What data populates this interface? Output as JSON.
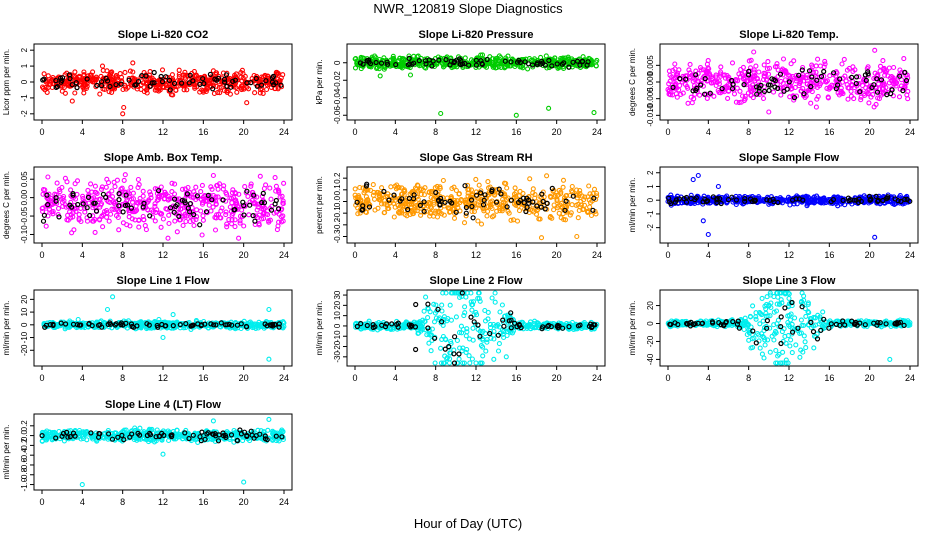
{
  "figure": {
    "title": "NWR_120819  Slope Diagnostics",
    "xlabel": "Hour of Day (UTC)"
  },
  "chart_data": [
    {
      "type": "scatter",
      "title": "Slope Li-820 CO2",
      "ylabel": "Licor ppm per min.",
      "color": "#ff0000",
      "xlim": [
        0,
        24
      ],
      "xticks": [
        0,
        4,
        8,
        12,
        16,
        20,
        24
      ],
      "ylim": [
        -2.2,
        2.2
      ],
      "yticks": [
        "-2",
        "-1",
        "0",
        "1",
        "2"
      ],
      "ytick_values": [
        -2,
        -1,
        0,
        1,
        2
      ],
      "spread": 0.55,
      "outliers": [
        [
          8,
          -2.0
        ],
        [
          8.1,
          -1.6
        ],
        [
          3,
          -1.2
        ],
        [
          20.3,
          -1.3
        ],
        [
          6,
          1.0
        ],
        [
          9,
          1.2
        ]
      ],
      "black_spread": 0.4
    },
    {
      "type": "scatter",
      "title": "Slope Li-820 Pressure",
      "ylabel": "kPa per min.",
      "color": "#00cc00",
      "xlim": [
        0,
        24
      ],
      "xticks": [
        0,
        4,
        8,
        12,
        16,
        20,
        24
      ],
      "ylim": [
        -0.062,
        0.018
      ],
      "yticks": [
        "-0.06",
        "-0.04",
        "-0.02",
        "0"
      ],
      "ytick_values": [
        -0.06,
        -0.04,
        -0.02,
        0
      ],
      "spread": 0.006,
      "center": 0.0,
      "outliers": [
        [
          8.5,
          -0.058
        ],
        [
          16,
          -0.06
        ],
        [
          19.2,
          -0.052
        ],
        [
          23.7,
          -0.057
        ],
        [
          2.5,
          -0.015
        ],
        [
          5.5,
          -0.014
        ]
      ],
      "black_spread": 0.004
    },
    {
      "type": "scatter",
      "title": "Slope Li-820 Temp.",
      "ylabel": "degrees C per min.",
      "color": "#ff00ff",
      "xlim": [
        0,
        24
      ],
      "xticks": [
        0,
        4,
        8,
        12,
        16,
        20,
        24
      ],
      "ylim": [
        -0.0105,
        0.0105
      ],
      "yticks": [
        "-0.010",
        "-0.005",
        "0.000",
        "0.005"
      ],
      "ytick_values": [
        -0.01,
        -0.005,
        0,
        0.005
      ],
      "spread": 0.005,
      "outliers": [
        [
          10,
          -0.009
        ],
        [
          8.5,
          0.009
        ],
        [
          20.5,
          0.0095
        ]
      ],
      "black_spread": 0.004
    },
    {
      "type": "scatter",
      "title": "Slope Amb. Box Temp.",
      "ylabel": "degrees C per min.",
      "color": "#ff00ff",
      "xlim": [
        0,
        24
      ],
      "xticks": [
        0,
        4,
        8,
        12,
        16,
        20,
        24
      ],
      "ylim": [
        -0.115,
        0.075
      ],
      "yticks": [
        "-0.10",
        "-0.05",
        "0.00",
        "0.05"
      ],
      "ytick_values": [
        -0.1,
        -0.05,
        0,
        0.05
      ],
      "spread": 0.055,
      "center": -0.02,
      "outliers": [
        [
          17,
          0.06
        ],
        [
          12.5,
          -0.11
        ],
        [
          19.5,
          -0.11
        ]
      ],
      "black_spread": 0.04
    },
    {
      "type": "scatter",
      "title": "Slope Gas Stream RH",
      "ylabel": "percent per min.",
      "color": "#ff9900",
      "xlim": [
        0,
        24
      ],
      "xticks": [
        0,
        4,
        8,
        12,
        16,
        20,
        24
      ],
      "ylim": [
        -0.33,
        0.27
      ],
      "yticks": [
        "-0.3",
        "-0.2",
        "-0.1",
        "0.0",
        "0.1",
        "0.2"
      ],
      "ytick_values": [
        -0.3,
        -0.2,
        -0.1,
        0,
        0.1,
        0.2
      ],
      "spread": 0.13,
      "outliers": [
        [
          18.5,
          -0.31
        ],
        [
          22,
          -0.3
        ],
        [
          19,
          0.22
        ]
      ],
      "black_spread": 0.1
    },
    {
      "type": "scatter",
      "title": "Slope Sample Flow",
      "ylabel": "ml/min per min.",
      "color": "#0000ff",
      "xlim": [
        0,
        24
      ],
      "xticks": [
        0,
        4,
        8,
        12,
        16,
        20,
        24
      ],
      "ylim": [
        -2.9,
        2.2
      ],
      "yticks": [
        "-2",
        "-1",
        "0",
        "1",
        "2"
      ],
      "ytick_values": [
        -2,
        -1,
        0,
        1,
        2
      ],
      "spread": 0.25,
      "outliers": [
        [
          3,
          1.8
        ],
        [
          4,
          -2.5
        ],
        [
          20.5,
          -2.7
        ],
        [
          2.5,
          1.5
        ],
        [
          3.5,
          -1.5
        ],
        [
          5,
          1.0
        ]
      ],
      "black_spread": 0.2
    },
    {
      "type": "scatter",
      "title": "Slope Line 1 Flow",
      "ylabel": "ml/min per min.",
      "color": "#00eeee",
      "xlim": [
        0,
        24
      ],
      "xticks": [
        0,
        4,
        8,
        12,
        16,
        20,
        24
      ],
      "ylim": [
        -30,
        25
      ],
      "yticks": [
        "-20",
        "-10",
        "0",
        "10",
        "20"
      ],
      "ytick_values": [
        -20,
        -10,
        0,
        10,
        20
      ],
      "spread": 2.5,
      "outliers": [
        [
          7,
          22
        ],
        [
          22.5,
          -27
        ],
        [
          6.5,
          12
        ],
        [
          12,
          -10
        ],
        [
          13,
          8
        ],
        [
          22.5,
          12
        ]
      ],
      "black_spread": 1.5
    },
    {
      "type": "scatter",
      "title": "Slope Line 2 Flow",
      "ylabel": "ml/min per min.",
      "color": "#00eeee",
      "xlim": [
        0,
        24
      ],
      "xticks": [
        0,
        4,
        8,
        12,
        16,
        20,
        24
      ],
      "ylim": [
        -36,
        32
      ],
      "yticks": [
        "-30",
        "-20",
        "-10",
        "0",
        "10",
        "20",
        "30"
      ],
      "ytick_values": [
        -30,
        -20,
        -10,
        0,
        10,
        20,
        30
      ],
      "spread": 3,
      "burst": [
        6,
        16,
        22
      ],
      "outliers": [
        [
          15,
          -30
        ],
        [
          11,
          28
        ],
        [
          7,
          28
        ]
      ],
      "black_spread": 2
    },
    {
      "type": "scatter",
      "title": "Slope Line 3 Flow",
      "ylabel": "ml/min per min.",
      "color": "#00eeee",
      "xlim": [
        0,
        24
      ],
      "xticks": [
        0,
        4,
        8,
        12,
        16,
        20,
        24
      ],
      "ylim": [
        -44,
        34
      ],
      "yticks": [
        "-40",
        "-20",
        "0",
        "20"
      ],
      "ytick_values": [
        -40,
        -20,
        0,
        20
      ],
      "spread": 3,
      "burst": [
        7,
        16,
        18
      ],
      "outliers": [
        [
          10.5,
          30
        ],
        [
          22,
          -40
        ],
        [
          12,
          28
        ]
      ],
      "black_spread": 2
    },
    {
      "type": "scatter",
      "title": "Slope Line 4 (LT) Flow",
      "ylabel": "ml/min per min.",
      "color": "#00eeee",
      "xlim": [
        0,
        24
      ],
      "xticks": [
        0,
        4,
        8,
        12,
        16,
        20,
        24
      ],
      "ylim": [
        -1.05,
        0.38
      ],
      "yticks": [
        "-1.0",
        "-0.8",
        "-0.6",
        "-0.4",
        "-0.2",
        "0.0",
        "0.2"
      ],
      "ytick_values": [
        -1,
        -0.8,
        -0.6,
        -0.4,
        -0.2,
        0,
        0.2
      ],
      "spread": 0.1,
      "outliers": [
        [
          4,
          -1.0
        ],
        [
          20,
          -0.95
        ],
        [
          12,
          -0.38
        ],
        [
          22.5,
          0.33
        ],
        [
          17,
          0.3
        ]
      ],
      "black_spread": 0.08
    }
  ]
}
